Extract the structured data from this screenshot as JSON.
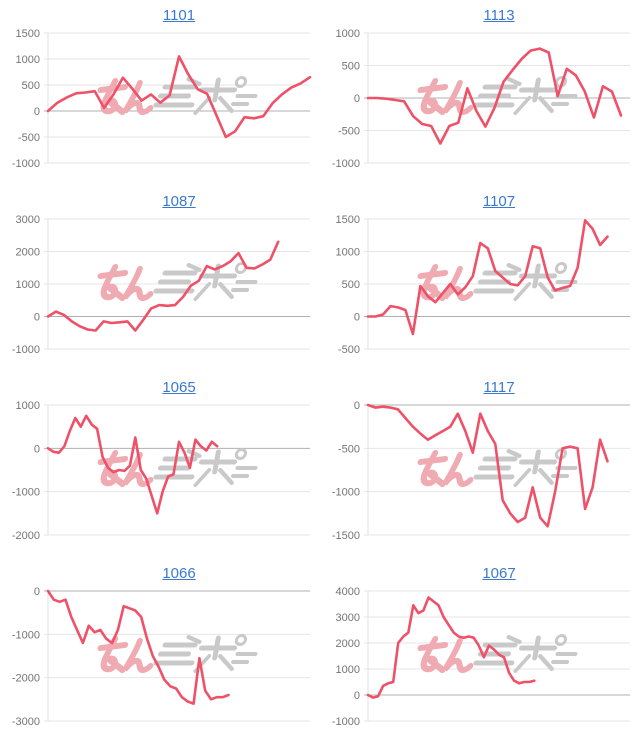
{
  "page": {
    "background": "#ffffff",
    "description": "grid of eight mini line charts with linked numeric titles"
  },
  "colors": {
    "line": "#ee5168",
    "title_link": "#3b79d1",
    "axis_label": "#757575",
    "gridline": "#e6e6e6",
    "zero_line": "#b0b0b0",
    "axis_line": "#e0e0e0",
    "watermark_pink": "#efaab2",
    "watermark_gray": "#c9c9c9"
  },
  "watermark": {
    "icon": "minkabu-logo-watermark",
    "visible_text": "みん",
    "style": "pink kana + gray speed-line glyphs, italic, centered in each plot"
  },
  "chart_data": [
    {
      "type": "line",
      "title": "1101",
      "xlabel": "",
      "ylabel": "",
      "ylim": [
        -1000,
        1500
      ],
      "yticks": [
        1500,
        1000,
        500,
        0,
        -500,
        -1000
      ],
      "grid": true,
      "legend": "none",
      "x_total": 29,
      "values": [
        0,
        160,
        260,
        340,
        355,
        380,
        60,
        320,
        640,
        430,
        200,
        320,
        160,
        300,
        1050,
        700,
        420,
        330,
        -80,
        -500,
        -390,
        -120,
        -140,
        -100,
        150,
        320,
        450,
        530,
        650
      ]
    },
    {
      "type": "line",
      "title": "1113",
      "xlabel": "",
      "ylabel": "",
      "ylim": [
        -1000,
        1000
      ],
      "yticks": [
        1000,
        500,
        0,
        -500,
        -1000
      ],
      "grid": true,
      "legend": "none",
      "x_total": 30,
      "values": [
        0,
        0,
        -10,
        -30,
        -50,
        -280,
        -400,
        -430,
        -700,
        -430,
        -380,
        150,
        -200,
        -440,
        -150,
        250,
        430,
        600,
        730,
        760,
        700,
        30,
        450,
        350,
        100,
        -300,
        180,
        100,
        -270
      ]
    },
    {
      "type": "line",
      "title": "1087",
      "xlabel": "",
      "ylabel": "",
      "ylim": [
        -1000,
        3000
      ],
      "yticks": [
        3000,
        2000,
        1000,
        0,
        -1000
      ],
      "grid": true,
      "legend": "none",
      "x_total": 34,
      "values": [
        0,
        150,
        50,
        -150,
        -300,
        -400,
        -430,
        -150,
        -200,
        -180,
        -150,
        -430,
        -100,
        250,
        350,
        330,
        350,
        600,
        950,
        1100,
        1550,
        1450,
        1550,
        1700,
        1950,
        1500,
        1480,
        1600,
        1750,
        2300
      ]
    },
    {
      "type": "line",
      "title": "1107",
      "xlabel": "",
      "ylabel": "",
      "ylim": [
        -500,
        1500
      ],
      "yticks": [
        1500,
        1000,
        500,
        0,
        -500
      ],
      "grid": true,
      "legend": "none",
      "x_total": 36,
      "values": [
        0,
        0,
        30,
        160,
        140,
        100,
        -270,
        470,
        310,
        220,
        360,
        500,
        340,
        450,
        620,
        1130,
        1050,
        700,
        600,
        500,
        480,
        620,
        1080,
        1050,
        600,
        400,
        440,
        470,
        750,
        1480,
        1350,
        1100,
        1230
      ]
    },
    {
      "type": "line",
      "title": "1065",
      "xlabel": "",
      "ylabel": "",
      "ylim": [
        -2000,
        1000
      ],
      "yticks": [
        1000,
        0,
        -1000,
        -2000
      ],
      "grid": true,
      "legend": "none",
      "x_total": 49,
      "values": [
        0,
        -80,
        -100,
        50,
        400,
        700,
        500,
        750,
        550,
        450,
        -200,
        -450,
        -550,
        -500,
        -520,
        -400,
        250,
        -500,
        -700,
        -1100,
        -1500,
        -1000,
        -650,
        -600,
        150,
        -100,
        -450,
        200,
        50,
        -50,
        150,
        50
      ]
    },
    {
      "type": "line",
      "title": "1117",
      "xlabel": "",
      "ylabel": "",
      "ylim": [
        -1500,
        0
      ],
      "yticks": [
        0,
        -500,
        -1000,
        -1500
      ],
      "grid": true,
      "legend": "none",
      "x_total": 36,
      "values": [
        0,
        -30,
        -20,
        -30,
        -50,
        -150,
        -250,
        -330,
        -400,
        -350,
        -300,
        -250,
        -100,
        -300,
        -550,
        -100,
        -300,
        -450,
        -1100,
        -1250,
        -1350,
        -1300,
        -950,
        -1300,
        -1400,
        -1000,
        -500,
        -480,
        -500,
        -1200,
        -950,
        -400,
        -650
      ]
    },
    {
      "type": "line",
      "title": "1066",
      "xlabel": "",
      "ylabel": "",
      "ylim": [
        -3000,
        0
      ],
      "yticks": [
        0,
        -1000,
        -2000,
        -3000
      ],
      "grid": true,
      "legend": "none",
      "x_total": 46,
      "values": [
        0,
        -200,
        -250,
        -200,
        -600,
        -900,
        -1200,
        -800,
        -950,
        -900,
        -1100,
        -1200,
        -900,
        -350,
        -400,
        -450,
        -600,
        -1100,
        -1500,
        -1750,
        -2050,
        -2200,
        -2250,
        -2450,
        -2550,
        -2600,
        -1550,
        -2300,
        -2500,
        -2450,
        -2450,
        -2400
      ]
    },
    {
      "type": "line",
      "title": "1067",
      "xlabel": "",
      "ylabel": "",
      "ylim": [
        -1000,
        4000
      ],
      "yticks": [
        4000,
        3000,
        2000,
        1000,
        0,
        -1000
      ],
      "grid": true,
      "legend": "none",
      "x_total": 53,
      "values": [
        0,
        -100,
        -50,
        350,
        450,
        500,
        2000,
        2250,
        2400,
        3450,
        3150,
        3250,
        3750,
        3600,
        3450,
        3000,
        2700,
        2400,
        2250,
        2200,
        2250,
        2200,
        1900,
        1450,
        1900,
        1750,
        1550,
        1450,
        850,
        550,
        450,
        500,
        500,
        550
      ]
    }
  ]
}
